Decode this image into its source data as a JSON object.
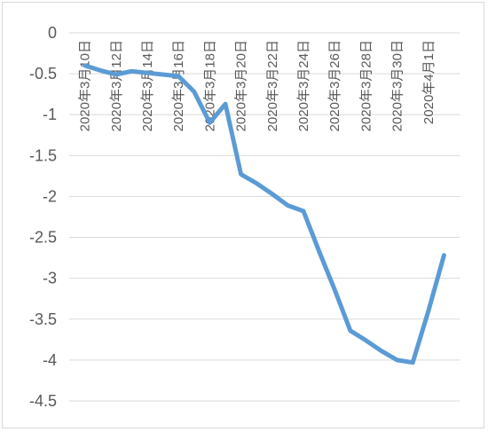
{
  "chart_data": {
    "type": "line",
    "title": "",
    "xlabel": "",
    "ylabel": "",
    "ylim": [
      -4.5,
      0
    ],
    "y_ticks": [
      "0",
      "-0.5",
      "-1",
      "-1.5",
      "-2",
      "-2.5",
      "-3",
      "-3.5",
      "-4",
      "-4.5"
    ],
    "x_tick_labels": [
      "2020年3月10日",
      "2020年3月12日",
      "2020年3月14日",
      "2020年3月16日",
      "2020年3月18日",
      "2020年3月20日",
      "2020年3月22日",
      "2020年3月24日",
      "2020年3月26日",
      "2020年3月28日",
      "2020年3月30日",
      "2020年4月1日"
    ],
    "grid": true,
    "legend": "none",
    "series": [
      {
        "color": "#5b9bd5",
        "x": [
          "2020-03-10",
          "2020-03-11",
          "2020-03-12",
          "2020-03-13",
          "2020-03-14",
          "2020-03-15",
          "2020-03-16",
          "2020-03-17",
          "2020-03-18",
          "2020-03-19",
          "2020-03-20",
          "2020-03-21",
          "2020-03-22",
          "2020-03-23",
          "2020-03-24",
          "2020-03-25",
          "2020-03-26",
          "2020-03-27",
          "2020-03-28",
          "2020-03-29",
          "2020-03-30",
          "2020-03-31",
          "2020-04-01",
          "2020-04-02"
        ],
        "values": [
          -0.4,
          -0.46,
          -0.51,
          -0.47,
          -0.49,
          -0.51,
          -0.53,
          -0.72,
          -1.1,
          -0.87,
          -1.73,
          -1.84,
          -1.97,
          -2.11,
          -2.18,
          -2.67,
          -3.14,
          -3.64,
          -3.76,
          -3.89,
          -4.0,
          -4.03,
          -3.4,
          -2.72
        ]
      }
    ]
  }
}
